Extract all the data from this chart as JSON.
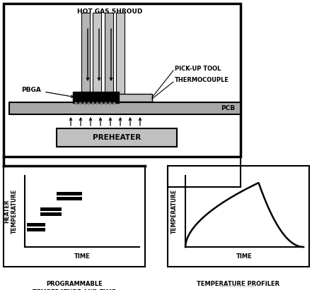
{
  "bg_color": "#ffffff",
  "shroud_label": "HOT GAS SHROUD",
  "pickup_label": "PICK-UP TOOL",
  "thermocouple_label": "THERMOCOUPLE",
  "pbga_label": "PBGA",
  "pcb_label": "PCB",
  "preheater_label": "PREHEATER",
  "left_box_caption": "PROGRAMMABLE\nTEMPERATURE AND TIME\nSETTINGS",
  "right_box_caption": "TEMPERATURE PROFILER",
  "left_ylabel": "HEATER\nTEMPERATURE",
  "left_xlabel": "TIME",
  "right_ylabel": "TEMPERATURE",
  "right_xlabel": "TIME",
  "gray_shroud": "#b0b0b0",
  "gray_pcb": "#a8a8a8",
  "gray_preheater": "#c0c0c0",
  "gray_holder": "#c0c0c0",
  "black": "#000000",
  "watermark": "www.elecfans.com",
  "watermark_color": "#aaaaaa"
}
